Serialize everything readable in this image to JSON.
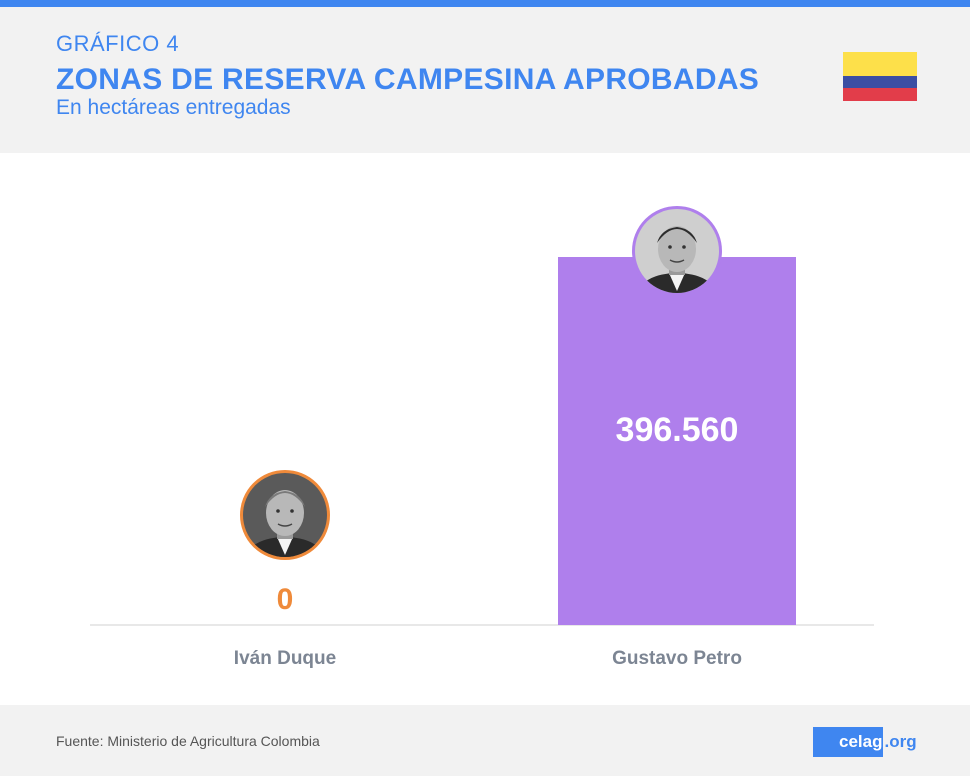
{
  "header": {
    "kicker": "GRÁFICO 4",
    "title": "ZONAS DE RESERVA CAMPESINA APROBADAS",
    "subtitle": "En hectáreas entregadas"
  },
  "flag_colors": [
    "#fde04a",
    "#3b4ea3",
    "#e23d4a"
  ],
  "chart_data": {
    "type": "bar",
    "categories": [
      "Iván Duque",
      "Gustavo Petro"
    ],
    "values": [
      0,
      396560
    ],
    "value_labels": [
      "0",
      "396.560"
    ],
    "colors": [
      "#ef8a3a",
      "#af7fec"
    ],
    "portraits": [
      "duque-portrait-icon",
      "petro-portrait-icon"
    ],
    "ylim": [
      0,
      396560
    ],
    "grid": false,
    "legend": "none"
  },
  "footer": {
    "source": "Fuente: Ministerio de Agricultura Colombia",
    "logo_main": "celag",
    "logo_suffix": ".org"
  }
}
